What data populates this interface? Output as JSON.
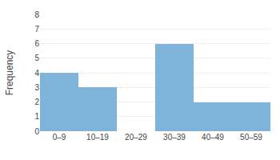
{
  "chart_data": {
    "type": "bar",
    "categories": [
      "0–9",
      "10–19",
      "20–29",
      "30–39",
      "40–49",
      "50–59"
    ],
    "values": [
      4,
      3,
      0,
      6,
      2,
      2
    ],
    "color": "#7fb3d9",
    "ylabel": "Frequency",
    "ylim": [
      0,
      8
    ],
    "yticks": [
      0,
      1,
      2,
      3,
      4,
      5,
      6,
      7,
      8
    ],
    "grid": true
  }
}
